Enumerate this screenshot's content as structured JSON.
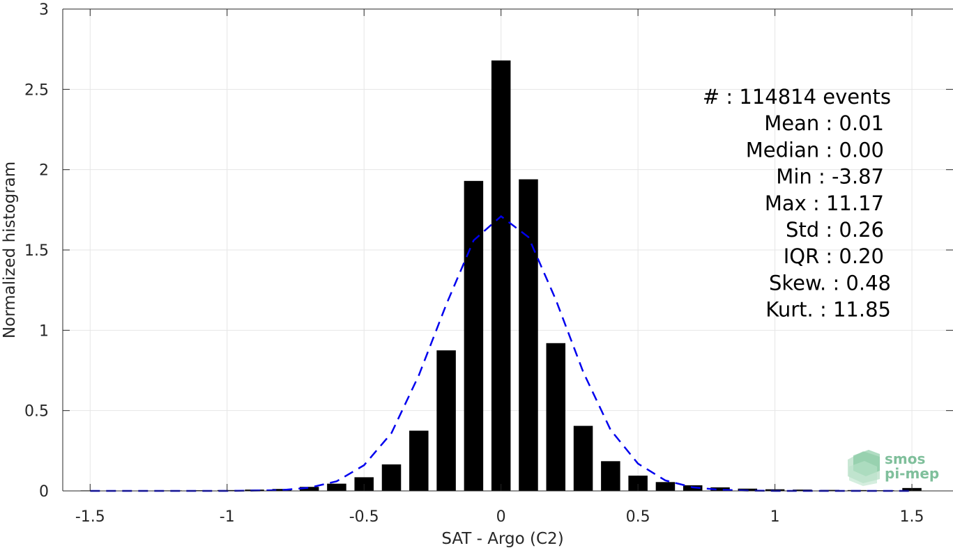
{
  "chart_data": {
    "type": "bar",
    "xlabel": "SAT - Argo (C2)",
    "ylabel": "Normalized histogram",
    "xlim": [
      -1.6,
      1.65
    ],
    "ylim": [
      0,
      3
    ],
    "x_ticks": [
      -1.5,
      -1,
      -0.5,
      0,
      0.5,
      1,
      1.5
    ],
    "x_tick_labels": [
      "-1.5",
      "-1",
      "-0.5",
      "0",
      "0.5",
      "1",
      "1.5"
    ],
    "y_ticks": [
      0,
      0.5,
      1,
      1.5,
      2,
      2.5,
      3
    ],
    "y_tick_labels": [
      "0",
      "0.5",
      "1",
      "1.5",
      "2",
      "2.5",
      "3"
    ],
    "grid": true,
    "bar_width": 0.07,
    "bars": {
      "x": [
        -1.5,
        -1.3,
        -1.2,
        -1.1,
        -1.0,
        -0.9,
        -0.8,
        -0.7,
        -0.6,
        -0.5,
        -0.4,
        -0.3,
        -0.2,
        -0.1,
        0.0,
        0.1,
        0.2,
        0.3,
        0.4,
        0.5,
        0.6,
        0.7,
        0.8,
        0.9,
        1.0,
        1.1,
        1.2,
        1.3,
        1.4,
        1.5
      ],
      "values": [
        0.003,
        0.002,
        0.003,
        0.004,
        0.005,
        0.008,
        0.012,
        0.025,
        0.045,
        0.085,
        0.165,
        0.375,
        0.875,
        1.93,
        2.68,
        1.94,
        0.92,
        0.405,
        0.185,
        0.095,
        0.055,
        0.035,
        0.022,
        0.014,
        0.01,
        0.008,
        0.006,
        0.005,
        0.004,
        0.018
      ],
      "color": "#000000"
    },
    "fit_curve": {
      "style": "dashed",
      "color": "#0000ee",
      "x": [
        -1.5,
        -1.4,
        -1.3,
        -1.2,
        -1.1,
        -1.0,
        -0.9,
        -0.8,
        -0.7,
        -0.6,
        -0.5,
        -0.4,
        -0.3,
        -0.2,
        -0.1,
        0.0,
        0.1,
        0.2,
        0.3,
        0.4,
        0.5,
        0.6,
        0.7,
        0.8,
        0.9,
        1.0,
        1.1,
        1.2,
        1.3,
        1.4,
        1.5
      ],
      "y": [
        0.0,
        0.0,
        0.0,
        0.0,
        0.0,
        0.0,
        0.002,
        0.005,
        0.02,
        0.06,
        0.16,
        0.36,
        0.72,
        1.16,
        1.56,
        1.71,
        1.58,
        1.19,
        0.74,
        0.38,
        0.17,
        0.065,
        0.022,
        0.007,
        0.002,
        0.0,
        0.0,
        0.0,
        0.0,
        0.0,
        0.0
      ]
    },
    "annotations": [
      "#  : 114814 events",
      "Mean : 0.01",
      "Median : 0.00",
      "Min : -3.87",
      "Max : 11.17",
      "Std : 0.26",
      "IQR : 0.20",
      "Skew. : 0.48",
      "Kurt. : 11.85"
    ]
  },
  "logo": {
    "line1": "smos",
    "line2": "pi-mep"
  },
  "colors": {
    "axis": "#262626",
    "grid": "#e6e6e6",
    "logo": "#7fbf9b"
  }
}
